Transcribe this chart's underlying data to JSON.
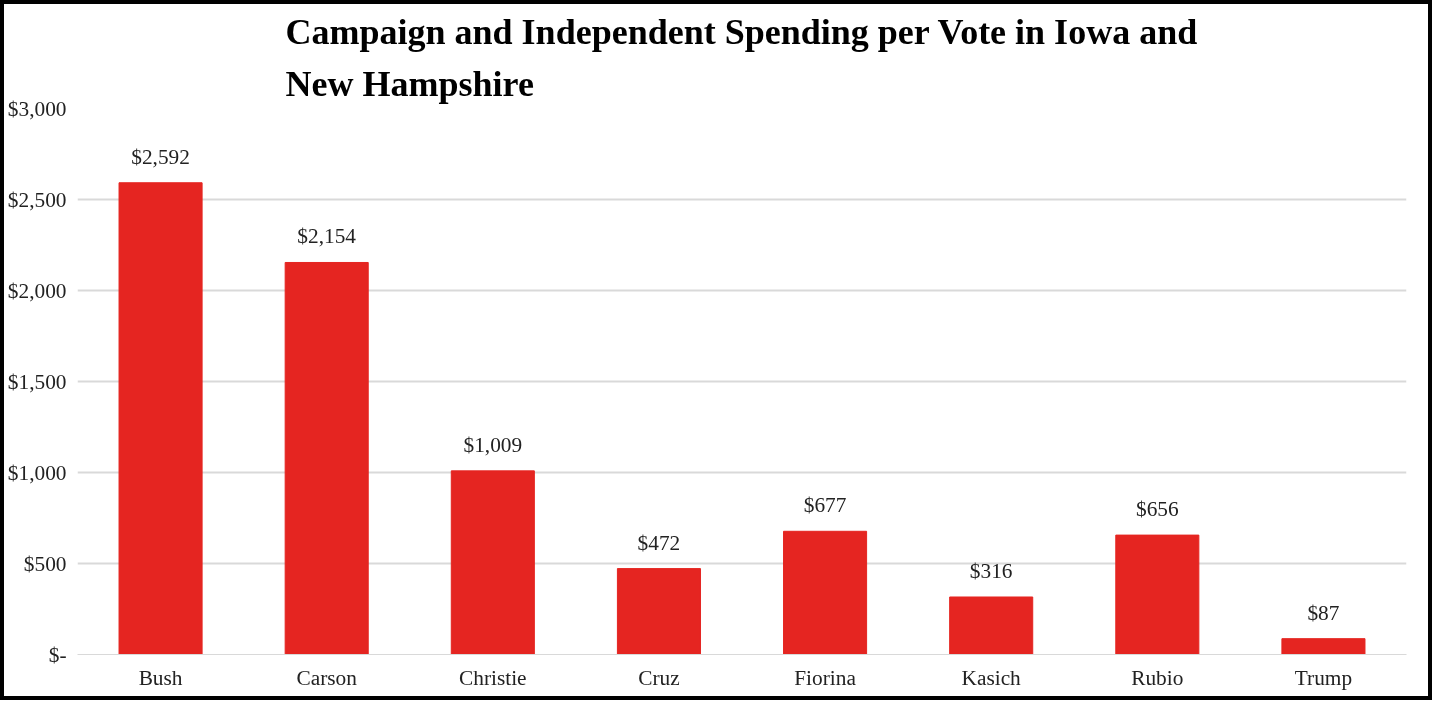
{
  "chart_data": {
    "type": "bar",
    "title": "Campaign and Independent Spending per Vote in Iowa and\nNew Hampshire",
    "categories": [
      "Bush",
      "Carson",
      "Christie",
      "Cruz",
      "Fiorina",
      "Kasich",
      "Rubio",
      "Trump"
    ],
    "values": [
      2592,
      2154,
      1009,
      472,
      677,
      316,
      656,
      87
    ],
    "value_labels": [
      "$2,592",
      "$2,154",
      "$1,009",
      "$472",
      "$677",
      "$316",
      "$656",
      "$87"
    ],
    "color": "#e52521",
    "ylim": [
      0,
      3000
    ],
    "yticks": [
      {
        "value": 0,
        "label": "$-"
      },
      {
        "value": 500,
        "label": "$500"
      },
      {
        "value": 1000,
        "label": "$1,000"
      },
      {
        "value": 1500,
        "label": "$1,500"
      },
      {
        "value": 2000,
        "label": "$2,000"
      },
      {
        "value": 2500,
        "label": "$2,500"
      },
      {
        "value": 3000,
        "label": "$3,000"
      }
    ],
    "grid": "y"
  }
}
